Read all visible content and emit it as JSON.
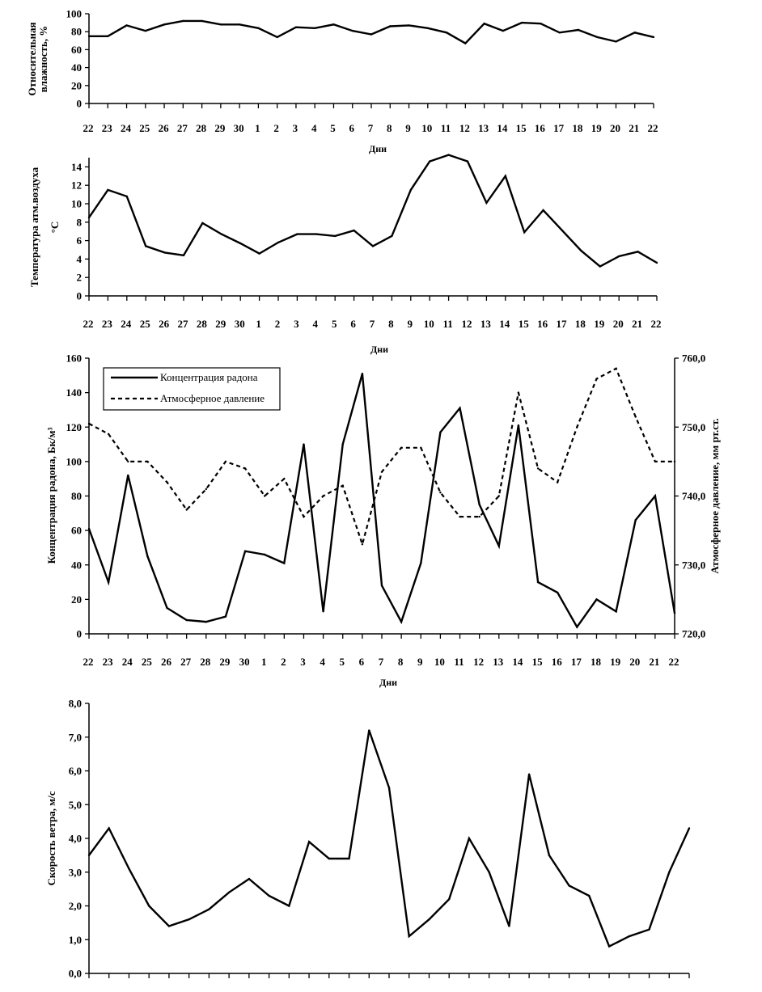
{
  "days": [
    "22",
    "23",
    "24",
    "25",
    "26",
    "27",
    "28",
    "29",
    "30",
    "1",
    "2",
    "3",
    "4",
    "5",
    "6",
    "7",
    "8",
    "9",
    "10",
    "11",
    "12",
    "13",
    "14",
    "15",
    "16",
    "17",
    "18",
    "19",
    "20",
    "21",
    "22"
  ],
  "x_title": "Дни",
  "colors": {
    "line": "#000000",
    "axis": "#000000",
    "background": "#ffffff"
  },
  "chart_data": [
    {
      "id": "humidity",
      "type": "line",
      "ylabel": [
        "Относительная",
        "влажность, %"
      ],
      "ylim": [
        0,
        100
      ],
      "yticks": [
        "0",
        "20",
        "40",
        "60",
        "80",
        "100"
      ],
      "ytick_values": [
        0,
        20,
        40,
        60,
        80,
        100
      ],
      "series": [
        {
          "name": "Относительная влажность",
          "style": "solid",
          "values": [
            75,
            75,
            87,
            81,
            88,
            92,
            92,
            88,
            88,
            84,
            74,
            85,
            84,
            88,
            81,
            77,
            86,
            87,
            84,
            79,
            67,
            89,
            81,
            90,
            89,
            79,
            82,
            74,
            69,
            79,
            74
          ]
        }
      ]
    },
    {
      "id": "temperature",
      "type": "line",
      "ylabel": [
        "Температура атм.воздуха",
        "°C"
      ],
      "ylim": [
        0,
        15
      ],
      "yticks": [
        "0",
        "2",
        "4",
        "6",
        "8",
        "10",
        "12",
        "14"
      ],
      "ytick_values": [
        0,
        2,
        4,
        6,
        8,
        10,
        12,
        14
      ],
      "series": [
        {
          "name": "Температура атм.воздуха",
          "style": "solid",
          "values": [
            8.5,
            11.5,
            10.8,
            5.4,
            4.7,
            4.4,
            7.9,
            6.7,
            5.7,
            4.6,
            5.8,
            6.7,
            6.7,
            6.5,
            7.1,
            5.4,
            6.5,
            11.5,
            14.6,
            15.3,
            14.6,
            10.1,
            13.0,
            6.9,
            9.3,
            7.1,
            4.9,
            3.2,
            4.3,
            4.8,
            3.6
          ]
        }
      ]
    },
    {
      "id": "radon",
      "type": "line",
      "ylabel": [
        "Концентрация радона, Бк/м³"
      ],
      "y2label": [
        "Атмосферное давление, мм рт.ст."
      ],
      "ylim": [
        0,
        160
      ],
      "yticks": [
        "0",
        "20",
        "40",
        "60",
        "80",
        "100",
        "120",
        "140",
        "160"
      ],
      "ytick_values": [
        0,
        20,
        40,
        60,
        80,
        100,
        120,
        140,
        160
      ],
      "y2lim": [
        720,
        760
      ],
      "y2ticks": [
        "720,0",
        "730,0",
        "740,0",
        "750,0",
        "760,0"
      ],
      "y2tick_values": [
        720,
        730,
        740,
        750,
        760
      ],
      "legend": [
        "Концентрация радона",
        "Атмосферное давление"
      ],
      "series": [
        {
          "name": "Концентрация радона",
          "style": "solid",
          "axis": "left",
          "values": [
            61,
            30,
            92,
            45,
            15,
            8,
            7,
            10,
            48,
            46,
            41,
            110,
            13,
            110,
            151,
            28,
            7,
            41,
            117,
            131,
            75,
            51,
            121,
            30,
            24,
            4,
            20,
            13,
            66,
            80,
            12
          ]
        },
        {
          "name": "Атмосферное давление",
          "style": "dashed",
          "axis": "right",
          "values": [
            750.5,
            749,
            745,
            745,
            742,
            738,
            741,
            745,
            744,
            740,
            742.5,
            737,
            740,
            741.5,
            733,
            743.5,
            747,
            747,
            740.5,
            737,
            737,
            740,
            755,
            744,
            742,
            750,
            757,
            758.5,
            751.5,
            745,
            745
          ]
        }
      ]
    },
    {
      "id": "wind",
      "type": "line",
      "ylabel": [
        "Скорость ветра, м/с"
      ],
      "ylim": [
        0,
        8
      ],
      "yticks": [
        "0,0",
        "1,0",
        "2,0",
        "3,0",
        "4,0",
        "5,0",
        "6,0",
        "7,0",
        "8,0"
      ],
      "ytick_values": [
        0,
        1,
        2,
        3,
        4,
        5,
        6,
        7,
        8
      ],
      "series": [
        {
          "name": "Скорость ветра",
          "style": "solid",
          "values": [
            3.5,
            4.3,
            3.1,
            2.0,
            1.4,
            1.6,
            1.9,
            2.4,
            2.8,
            2.3,
            2.0,
            3.9,
            3.4,
            3.4,
            7.2,
            5.5,
            1.1,
            1.6,
            2.2,
            4.0,
            3.0,
            1.4,
            5.9,
            3.5,
            2.6,
            2.3,
            0.8,
            1.1,
            1.3,
            3.0,
            4.3
          ]
        }
      ]
    }
  ]
}
